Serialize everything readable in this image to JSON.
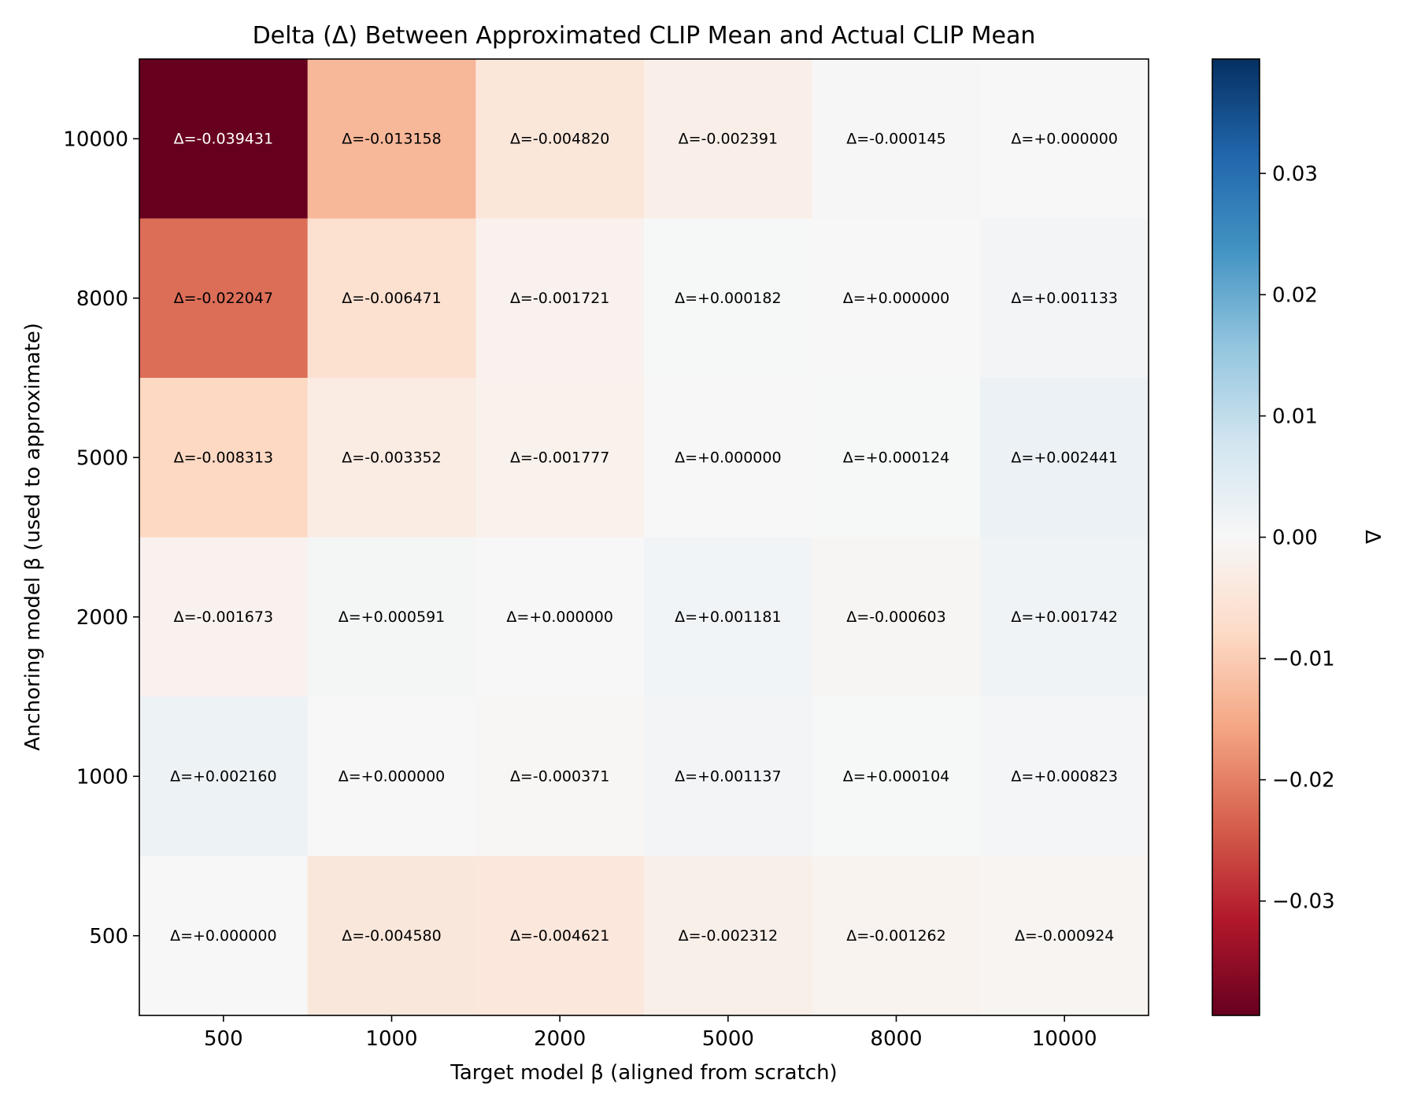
{
  "chart_data": {
    "type": "heatmap",
    "title": "Delta (Δ) Between Approximated CLIP Mean and Actual CLIP Mean",
    "xlabel": "Target model β (aligned from scratch)",
    "ylabel": "Anchoring model β (used to approximate)",
    "x_categories": [
      "500",
      "1000",
      "2000",
      "5000",
      "8000",
      "10000"
    ],
    "y_categories": [
      "10000",
      "8000",
      "5000",
      "2000",
      "1000",
      "500"
    ],
    "values": [
      [
        -0.039431,
        -0.013158,
        -0.00482,
        -0.002391,
        -0.000145,
        0.0
      ],
      [
        -0.022047,
        -0.006471,
        -0.001721,
        0.000182,
        0.0,
        0.001133
      ],
      [
        -0.008313,
        -0.003352,
        -0.001777,
        0.0,
        0.000124,
        0.002441
      ],
      [
        -0.001673,
        0.000591,
        0.0,
        0.001181,
        -0.000603,
        0.001742
      ],
      [
        0.00216,
        0.0,
        -0.000371,
        0.001137,
        0.000104,
        0.000823
      ],
      [
        0.0,
        -0.00458,
        -0.004621,
        -0.002312,
        -0.001262,
        -0.000924
      ]
    ],
    "cell_labels": [
      [
        "Δ=-0.039431",
        "Δ=-0.013158",
        "Δ=-0.004820",
        "Δ=-0.002391",
        "Δ=-0.000145",
        "Δ=+0.000000"
      ],
      [
        "Δ=-0.022047",
        "Δ=-0.006471",
        "Δ=-0.001721",
        "Δ=+0.000182",
        "Δ=+0.000000",
        "Δ=+0.001133"
      ],
      [
        "Δ=-0.008313",
        "Δ=-0.003352",
        "Δ=-0.001777",
        "Δ=+0.000000",
        "Δ=+0.000124",
        "Δ=+0.002441"
      ],
      [
        "Δ=-0.001673",
        "Δ=+0.000591",
        "Δ=+0.000000",
        "Δ=+0.001181",
        "Δ=-0.000603",
        "Δ=+0.001742"
      ],
      [
        "Δ=+0.002160",
        "Δ=+0.000000",
        "Δ=-0.000371",
        "Δ=+0.001137",
        "Δ=+0.000104",
        "Δ=+0.000823"
      ],
      [
        "Δ=+0.000000",
        "Δ=-0.004580",
        "Δ=-0.004621",
        "Δ=-0.002312",
        "Δ=-0.001262",
        "Δ=-0.000924"
      ]
    ],
    "colormap": "RdBu",
    "color_range": [
      -0.039431,
      0.039431
    ],
    "colorbar": {
      "label": "Δ",
      "ticks": [
        0.03,
        0.02,
        0.01,
        0.0,
        -0.01,
        -0.02,
        -0.03
      ],
      "tick_labels": [
        "0.03",
        "0.02",
        "0.01",
        "0.00",
        "−0.01",
        "−0.02",
        "−0.03"
      ]
    },
    "grid": false
  }
}
